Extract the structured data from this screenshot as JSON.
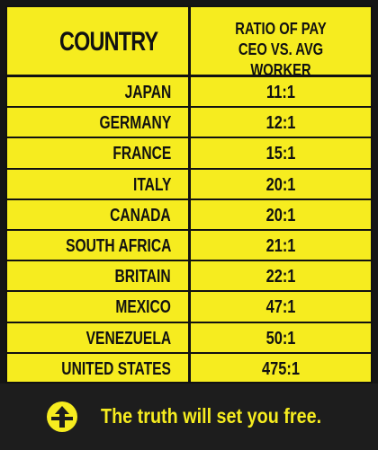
{
  "header": {
    "country_label": "COUNTRY",
    "ratio_label_line1": "RATIO OF PAY",
    "ratio_label_line2": "CEO VS. AVG WORKER"
  },
  "rows": [
    {
      "country": "JAPAN",
      "ratio": "11:1"
    },
    {
      "country": "GERMANY",
      "ratio": "12:1"
    },
    {
      "country": "FRANCE",
      "ratio": "15:1"
    },
    {
      "country": "ITALY",
      "ratio": "20:1"
    },
    {
      "country": "CANADA",
      "ratio": "20:1"
    },
    {
      "country": "SOUTH AFRICA",
      "ratio": "21:1"
    },
    {
      "country": "BRITAIN",
      "ratio": "22:1"
    },
    {
      "country": "MEXICO",
      "ratio": "47:1"
    },
    {
      "country": "VENEZUELA",
      "ratio": "50:1"
    },
    {
      "country": "UNITED STATES",
      "ratio": "475:1"
    }
  ],
  "footer": {
    "tagline": "The truth will set you free.",
    "logo_icon": "arrow-emblem-icon"
  },
  "colors": {
    "panel_yellow": "#f6ec1f",
    "footer_dark": "#1d1d1d",
    "ink": "#111111"
  },
  "chart_data": {
    "type": "table",
    "columns": [
      "COUNTRY",
      "RATIO OF PAY CEO VS. AVG WORKER"
    ],
    "rows": [
      [
        "JAPAN",
        "11:1"
      ],
      [
        "GERMANY",
        "12:1"
      ],
      [
        "FRANCE",
        "15:1"
      ],
      [
        "ITALY",
        "20:1"
      ],
      [
        "CANADA",
        "20:1"
      ],
      [
        "SOUTH AFRICA",
        "21:1"
      ],
      [
        "BRITAIN",
        "22:1"
      ],
      [
        "MEXICO",
        "47:1"
      ],
      [
        "VENEZUELA",
        "50:1"
      ],
      [
        "UNITED STATES",
        "475:1"
      ]
    ]
  }
}
